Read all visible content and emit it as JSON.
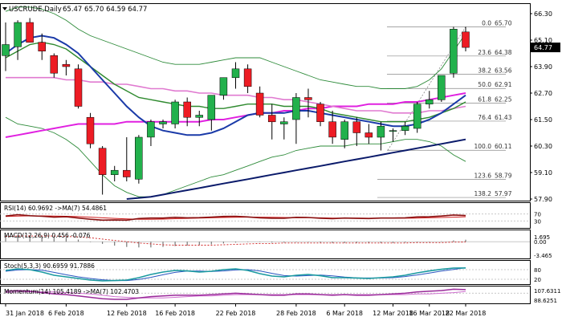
{
  "colors": {
    "up": "#22b14c",
    "down": "#ed1c24",
    "wick": "#000000",
    "blue": "#1a3aa8",
    "darkblue": "#0a1a6a",
    "green": "#2f8a2f",
    "magenta": "#e020e0",
    "pink": "#e07ad0",
    "bollinger": "#2e8b3a",
    "fib": "#888888",
    "grid": "#c8c8c8",
    "teal": "#1a9aa0",
    "purple": "#9a2a9a",
    "red": "#d02020",
    "black": "#000000"
  },
  "header": {
    "symbol_icon": "chevron-down-icon",
    "title": "USCRUDE,Daily",
    "ohlc": "65.47 65.70 64.59 64.77"
  },
  "chart_data": [
    {
      "type": "candlestick",
      "title": "USCRUDE,Daily",
      "ylim": [
        57.9,
        66.3
      ],
      "yticks": [
        "66.30",
        "65.10",
        "63.90",
        "62.70",
        "61.50",
        "60.30",
        "59.10",
        "57.90"
      ],
      "last_price": "64.77",
      "x_labels": [
        "31 Jan 2018",
        "6 Feb 2018",
        "12 Feb 2018",
        "16 Feb 2018",
        "22 Feb 2018",
        "28 Feb 2018",
        "6 Mar 2018",
        "12 Mar 2018",
        "16 Mar 2018",
        "22 Mar 2018"
      ],
      "candles": [
        {
          "o": 64.4,
          "h": 65.9,
          "l": 63.7,
          "c": 64.9
        },
        {
          "o": 64.8,
          "h": 66.0,
          "l": 64.2,
          "c": 65.9
        },
        {
          "o": 65.9,
          "h": 66.1,
          "l": 65.0,
          "c": 65.0
        },
        {
          "o": 65.0,
          "h": 65.4,
          "l": 64.2,
          "c": 64.6
        },
        {
          "o": 64.4,
          "h": 64.5,
          "l": 63.4,
          "c": 63.6
        },
        {
          "o": 64.0,
          "h": 64.2,
          "l": 63.5,
          "c": 63.9
        },
        {
          "o": 63.8,
          "h": 64.0,
          "l": 62.0,
          "c": 62.1
        },
        {
          "o": 61.6,
          "h": 61.8,
          "l": 60.2,
          "c": 60.4
        },
        {
          "o": 60.2,
          "h": 60.3,
          "l": 58.1,
          "c": 59.0
        },
        {
          "o": 59.0,
          "h": 59.4,
          "l": 58.7,
          "c": 59.2
        },
        {
          "o": 59.2,
          "h": 60.7,
          "l": 58.7,
          "c": 58.9
        },
        {
          "o": 58.8,
          "h": 60.8,
          "l": 58.6,
          "c": 60.7
        },
        {
          "o": 60.7,
          "h": 61.5,
          "l": 60.3,
          "c": 61.4
        },
        {
          "o": 61.3,
          "h": 61.5,
          "l": 61.1,
          "c": 61.4
        },
        {
          "o": 61.3,
          "h": 62.4,
          "l": 61.1,
          "c": 62.3
        },
        {
          "o": 62.3,
          "h": 62.5,
          "l": 61.2,
          "c": 61.6
        },
        {
          "o": 61.6,
          "h": 61.9,
          "l": 61.2,
          "c": 61.7
        },
        {
          "o": 61.5,
          "h": 62.6,
          "l": 61.0,
          "c": 62.6
        },
        {
          "o": 62.6,
          "h": 63.4,
          "l": 62.4,
          "c": 63.4
        },
        {
          "o": 63.4,
          "h": 64.1,
          "l": 62.9,
          "c": 63.8
        },
        {
          "o": 63.8,
          "h": 64.0,
          "l": 62.7,
          "c": 63.0
        },
        {
          "o": 62.7,
          "h": 63.0,
          "l": 61.6,
          "c": 61.7
        },
        {
          "o": 61.7,
          "h": 62.2,
          "l": 60.6,
          "c": 61.4
        },
        {
          "o": 61.3,
          "h": 61.6,
          "l": 60.6,
          "c": 61.4
        },
        {
          "o": 61.5,
          "h": 62.7,
          "l": 60.4,
          "c": 62.5
        },
        {
          "o": 62.5,
          "h": 62.9,
          "l": 61.6,
          "c": 62.4
        },
        {
          "o": 62.2,
          "h": 62.3,
          "l": 61.2,
          "c": 61.4
        },
        {
          "o": 61.4,
          "h": 61.9,
          "l": 60.4,
          "c": 60.7
        },
        {
          "o": 60.6,
          "h": 61.5,
          "l": 60.2,
          "c": 61.4
        },
        {
          "o": 61.4,
          "h": 61.6,
          "l": 60.3,
          "c": 60.9
        },
        {
          "o": 60.9,
          "h": 61.3,
          "l": 60.4,
          "c": 60.7
        },
        {
          "o": 60.7,
          "h": 61.4,
          "l": 60.1,
          "c": 61.2
        },
        {
          "o": 61.0,
          "h": 61.1,
          "l": 60.5,
          "c": 61.0
        },
        {
          "o": 61.0,
          "h": 61.4,
          "l": 60.8,
          "c": 61.2
        },
        {
          "o": 61.1,
          "h": 62.3,
          "l": 60.9,
          "c": 62.2
        },
        {
          "o": 62.2,
          "h": 62.8,
          "l": 62.0,
          "c": 62.4
        },
        {
          "o": 62.4,
          "h": 63.5,
          "l": 62.3,
          "c": 63.5
        },
        {
          "o": 63.6,
          "h": 65.7,
          "l": 63.4,
          "c": 65.6
        },
        {
          "o": 65.47,
          "h": 65.7,
          "l": 64.59,
          "c": 64.77
        }
      ],
      "ma_blue": [
        64.5,
        64.9,
        65.2,
        65.3,
        65.2,
        64.9,
        64.5,
        63.9,
        63.3,
        62.7,
        62.1,
        61.6,
        61.2,
        61.0,
        60.9,
        60.8,
        60.8,
        60.9,
        61.1,
        61.4,
        61.7,
        61.8,
        61.8,
        61.8,
        61.9,
        61.9,
        61.8,
        61.7,
        61.6,
        61.5,
        61.4,
        61.3,
        61.2,
        61.2,
        61.3,
        61.5,
        61.8,
        62.2,
        62.6
      ],
      "ma_green": [
        64.3,
        64.6,
        64.9,
        65.0,
        64.9,
        64.7,
        64.3,
        63.9,
        63.5,
        63.1,
        62.8,
        62.5,
        62.4,
        62.3,
        62.2,
        62.1,
        62.1,
        62.0,
        62.0,
        62.1,
        62.2,
        62.2,
        62.2,
        62.1,
        62.1,
        62.1,
        62.0,
        61.8,
        61.7,
        61.6,
        61.5,
        61.4,
        61.4,
        61.4,
        61.5,
        61.6,
        61.8,
        62.0,
        62.3
      ],
      "ma_magenta": [
        60.7,
        60.8,
        60.9,
        61.0,
        61.1,
        61.2,
        61.3,
        61.3,
        61.3,
        61.3,
        61.4,
        61.4,
        61.4,
        61.4,
        61.4,
        61.4,
        61.4,
        61.5,
        61.5,
        61.6,
        61.7,
        61.8,
        61.8,
        61.9,
        61.9,
        62.0,
        62.0,
        62.1,
        62.1,
        62.1,
        62.2,
        62.2,
        62.2,
        62.3,
        62.3,
        62.4,
        62.5,
        62.6,
        62.7
      ],
      "ma_pink": [
        63.4,
        63.4,
        63.4,
        63.4,
        63.4,
        63.3,
        63.3,
        63.2,
        63.2,
        63.1,
        63.1,
        63.0,
        62.9,
        62.9,
        62.8,
        62.8,
        62.7,
        62.7,
        62.6,
        62.6,
        62.6,
        62.5,
        62.5,
        62.4,
        62.4,
        62.3,
        62.2,
        62.1,
        62.0,
        61.9,
        61.9,
        61.9,
        61.8,
        61.8,
        61.8,
        61.9,
        61.9,
        62.0,
        62.1
      ],
      "ma_darkblue": [
        null,
        null,
        null,
        null,
        null,
        null,
        null,
        null,
        null,
        null,
        57.9,
        57.95,
        58.0,
        58.1,
        58.2,
        58.3,
        58.4,
        58.5,
        58.6,
        58.7,
        58.8,
        58.9,
        59.0,
        59.1,
        59.2,
        59.3,
        59.4,
        59.5,
        59.6,
        59.7,
        59.8,
        59.9,
        60.0,
        60.1,
        60.2,
        60.3,
        60.4,
        60.5,
        60.6
      ],
      "bb_upper": [
        66.4,
        66.6,
        66.6,
        66.5,
        66.3,
        66.0,
        65.6,
        65.3,
        65.1,
        64.9,
        64.7,
        64.5,
        64.3,
        64.1,
        64.0,
        64.0,
        64.0,
        64.1,
        64.2,
        64.3,
        64.3,
        64.3,
        64.1,
        63.9,
        63.7,
        63.5,
        63.3,
        63.2,
        63.1,
        63.0,
        63.0,
        62.9,
        62.9,
        62.9,
        63.0,
        63.3,
        63.8,
        64.6,
        65.4
      ],
      "bb_lower": [
        61.6,
        61.3,
        61.2,
        61.1,
        60.9,
        60.6,
        60.2,
        59.6,
        59.0,
        58.5,
        58.2,
        58.0,
        58.0,
        58.1,
        58.3,
        58.5,
        58.7,
        58.9,
        59.0,
        59.2,
        59.4,
        59.6,
        59.8,
        59.9,
        60.1,
        60.2,
        60.3,
        60.3,
        60.3,
        60.4,
        60.4,
        60.4,
        60.5,
        60.6,
        60.6,
        60.5,
        60.3,
        59.9,
        59.6
      ],
      "fib_levels": [
        {
          "label": "0.0",
          "value": "65.70"
        },
        {
          "label": "23.6",
          "value": "64.38"
        },
        {
          "label": "38.2",
          "value": "63.56"
        },
        {
          "label": "50.0",
          "value": "62.91"
        },
        {
          "label": "61.8",
          "value": "62.25"
        },
        {
          "label": "76.4",
          "value": "61.43"
        },
        {
          "label": "100.0",
          "value": "60.11"
        },
        {
          "label": "123.6",
          "value": "58.79"
        },
        {
          "label": "138.2",
          "value": "57.97"
        }
      ]
    },
    {
      "type": "line",
      "title": "RSI(14) 60.9692 ->MA(7) 54.4861",
      "ylim": [
        0,
        100
      ],
      "yticks": [
        "70",
        "30"
      ],
      "series": [
        {
          "name": "RSI(14)",
          "values": [
            58,
            66,
            60,
            57,
            52,
            54,
            47,
            40,
            35,
            36,
            35,
            44,
            47,
            47,
            51,
            48,
            49,
            52,
            56,
            57,
            53,
            48,
            46,
            46,
            51,
            50,
            46,
            43,
            47,
            45,
            44,
            47,
            47,
            48,
            53,
            54,
            58,
            64,
            61
          ]
        },
        {
          "name": "MA(7)",
          "values": [
            56,
            58,
            59,
            59,
            58,
            57,
            55,
            52,
            48,
            45,
            42,
            40,
            40,
            41,
            43,
            45,
            47,
            48,
            50,
            51,
            52,
            52,
            51,
            50,
            49,
            49,
            48,
            47,
            47,
            47,
            46,
            46,
            46,
            46,
            47,
            48,
            50,
            52,
            54
          ]
        }
      ]
    },
    {
      "type": "bar",
      "title": "MACD(12,26,9) 0.456 -0.076",
      "ylim": [
        -3.465,
        1.695
      ],
      "yticks": [
        "1.695",
        "0.00",
        "-3.465"
      ],
      "series": [
        {
          "name": "MACD",
          "values": [
            1.4,
            1.5,
            1.5,
            1.3,
            1.1,
            0.9,
            0.5,
            0.0,
            -0.5,
            -0.9,
            -1.2,
            -1.3,
            -1.3,
            -1.2,
            -1.0,
            -0.9,
            -0.8,
            -0.6,
            -0.4,
            -0.2,
            -0.1,
            -0.1,
            -0.2,
            -0.2,
            -0.1,
            -0.1,
            -0.2,
            -0.3,
            -0.3,
            -0.3,
            -0.3,
            -0.3,
            -0.3,
            -0.2,
            -0.1,
            0.0,
            0.1,
            0.3,
            0.456
          ]
        },
        {
          "name": "Signal",
          "values": [
            1.2,
            1.3,
            1.3,
            1.3,
            1.3,
            1.2,
            1.1,
            0.9,
            0.6,
            0.3,
            0.0,
            -0.3,
            -0.5,
            -0.7,
            -0.8,
            -0.8,
            -0.8,
            -0.8,
            -0.7,
            -0.6,
            -0.5,
            -0.4,
            -0.4,
            -0.3,
            -0.3,
            -0.3,
            -0.3,
            -0.3,
            -0.3,
            -0.3,
            -0.3,
            -0.3,
            -0.3,
            -0.3,
            -0.2,
            -0.2,
            -0.2,
            -0.1,
            -0.076
          ]
        }
      ]
    },
    {
      "type": "line",
      "title": "Stoch(5,3,3) 90.6959 91.7886",
      "ylim": [
        0,
        100
      ],
      "yticks": [
        "80",
        "20"
      ],
      "series": [
        {
          "name": "%K",
          "values": [
            75,
            85,
            80,
            65,
            45,
            35,
            25,
            15,
            10,
            12,
            15,
            30,
            50,
            65,
            75,
            72,
            65,
            70,
            80,
            85,
            75,
            55,
            40,
            35,
            45,
            50,
            42,
            30,
            30,
            28,
            25,
            30,
            35,
            45,
            60,
            72,
            82,
            90,
            90.7
          ]
        },
        {
          "name": "%D",
          "values": [
            70,
            78,
            80,
            77,
            63,
            48,
            35,
            25,
            17,
            12,
            12,
            19,
            32,
            48,
            63,
            71,
            71,
            69,
            72,
            78,
            80,
            72,
            57,
            43,
            40,
            43,
            46,
            41,
            34,
            29,
            28,
            28,
            30,
            37,
            47,
            59,
            71,
            81,
            91.8
          ]
        }
      ]
    },
    {
      "type": "line",
      "title": "Momentum(14) 105.4189 ->MA(7) 102.4703",
      "ylim": [
        88.6251,
        107.6311
      ],
      "yticks": [
        "107.6311",
        "88.6251"
      ],
      "series": [
        {
          "name": "Momentum(14)",
          "values": [
            103,
            104,
            103,
            101,
            99,
            98,
            96,
            94,
            92,
            91,
            91,
            93,
            95,
            96,
            97,
            97,
            97,
            98,
            99,
            100,
            99,
            98,
            97,
            97,
            99,
            99,
            98,
            97,
            98,
            97,
            97,
            98,
            99,
            100,
            102,
            103,
            104,
            106,
            105.4
          ]
        },
        {
          "name": "MA(7)",
          "values": [
            101,
            102,
            102,
            102,
            102,
            101,
            100,
            99,
            97,
            95,
            94,
            93,
            93,
            93,
            94,
            95,
            96,
            96,
            97,
            98,
            98,
            98,
            98,
            98,
            98,
            98,
            98,
            98,
            98,
            98,
            98,
            98,
            98,
            98,
            99,
            99,
            100,
            101,
            102.5
          ]
        }
      ]
    }
  ]
}
